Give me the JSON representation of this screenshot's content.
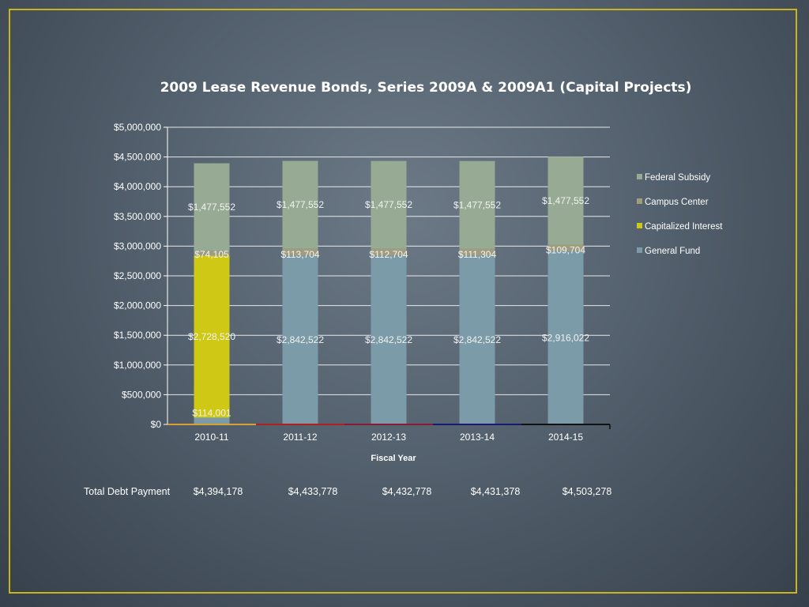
{
  "chart_data": {
    "type": "bar",
    "stacked": true,
    "title": "2009 Lease Revenue Bonds, Series 2009A & 2009A1 (Capital Projects)",
    "xlabel": "Fiscal Year",
    "ylabel": "",
    "ylim": [
      0,
      5000000
    ],
    "yticks": [
      0,
      500000,
      1000000,
      1500000,
      2000000,
      2500000,
      3000000,
      3500000,
      4000000,
      4500000,
      5000000
    ],
    "ytick_labels": [
      "$0",
      "$500,000",
      "$1,000,000",
      "$1,500,000",
      "$2,000,000",
      "$2,500,000",
      "$3,000,000",
      "$3,500,000",
      "$4,000,000",
      "$4,500,000",
      "$5,000,000"
    ],
    "grid": true,
    "legend_position": "right",
    "categories": [
      "2010-11",
      "2011-12",
      "2012-13",
      "2013-14",
      "2014-15"
    ],
    "series": [
      {
        "name": "General Fund",
        "color": "#7c9ba8",
        "values": [
          114001,
          2842522,
          2842522,
          2842522,
          2916022
        ],
        "labels": [
          "$114,001",
          "$2,842,522",
          "$2,842,522",
          "$2,842,522",
          "$2,916,022"
        ]
      },
      {
        "name": "Capitalized Interest",
        "color": "#cfc915",
        "values": [
          2728520,
          0,
          0,
          0,
          0
        ],
        "labels": [
          "$2,728,520",
          "",
          "",
          "",
          ""
        ]
      },
      {
        "name": "Campus Center",
        "color": "#a09c7e",
        "values": [
          74105,
          113704,
          112704,
          111304,
          109704
        ],
        "labels": [
          "$74,105",
          "$113,704",
          "$112,704",
          "$111,304",
          "$109,704"
        ]
      },
      {
        "name": "Federal Subsidy",
        "color": "#97ab94",
        "values": [
          1477552,
          1477552,
          1477552,
          1477552,
          1477552
        ],
        "labels": [
          "$1,477,552",
          "$1,477,552",
          "$1,477,552",
          "$1,477,552",
          "$1,477,552"
        ]
      }
    ],
    "legend": [
      "Federal Subsidy",
      "Campus Center",
      "Capitalized Interest",
      "General Fund"
    ],
    "totals": {
      "label": "Total Debt Payment",
      "values": [
        "$4,394,178",
        "$4,433,778",
        "$4,432,778",
        "$4,431,378",
        "$4,503,278"
      ]
    }
  },
  "colors": {
    "frame": "#c9b41a",
    "gridline": "#ffffff"
  }
}
